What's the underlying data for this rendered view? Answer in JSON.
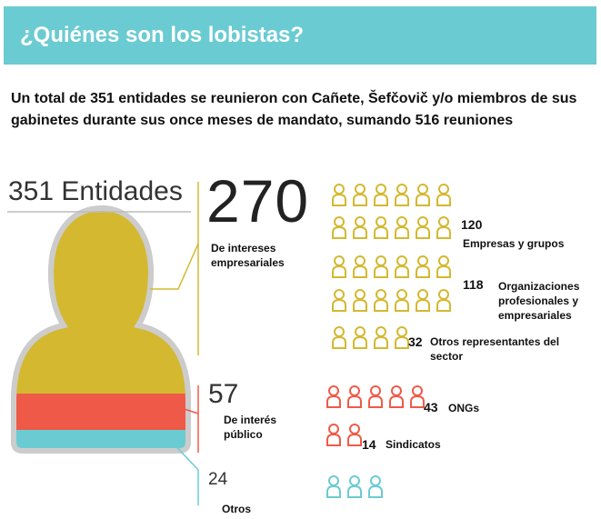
{
  "header": {
    "title": "¿Quiénes son los lobistas?",
    "subtitle": "Un total de 351 entidades se reunieron con Cañete, Šefčovič y/o miembros de sus gabinetes durante sus once meses de mandato, sumando 516 reuniones"
  },
  "total_label": "351 Entidades",
  "colors": {
    "banner": "#6bcbd2",
    "business": "#d4b830",
    "public": "#ef5a48",
    "other": "#6bcbd2"
  },
  "groups": [
    {
      "number": "270",
      "label": "De intereses empresariales",
      "value": 270,
      "color": "#d4b830"
    },
    {
      "number": "57",
      "label": "De interés público",
      "value": 57,
      "color": "#ef5a48"
    },
    {
      "number": "24",
      "label": "Otros",
      "value": 24,
      "color": "#6bcbd2"
    }
  ],
  "subgroups": [
    {
      "count": "120",
      "label": "Empresas y grupos",
      "icon": "person-icon",
      "color": "#d4b830"
    },
    {
      "count": "118",
      "label": "Organizaciones profesionales y empresariales",
      "icon": "person-icon",
      "color": "#d4b830"
    },
    {
      "count": "32",
      "label": "Otros representantes del sector",
      "icon": "person-icon",
      "color": "#d4b830"
    },
    {
      "count": "43",
      "label": "ONGs",
      "icon": "person-icon",
      "color": "#ef5a48"
    },
    {
      "count": "14",
      "label": "Sindicatos",
      "icon": "person-icon",
      "color": "#ef5a48"
    }
  ]
}
